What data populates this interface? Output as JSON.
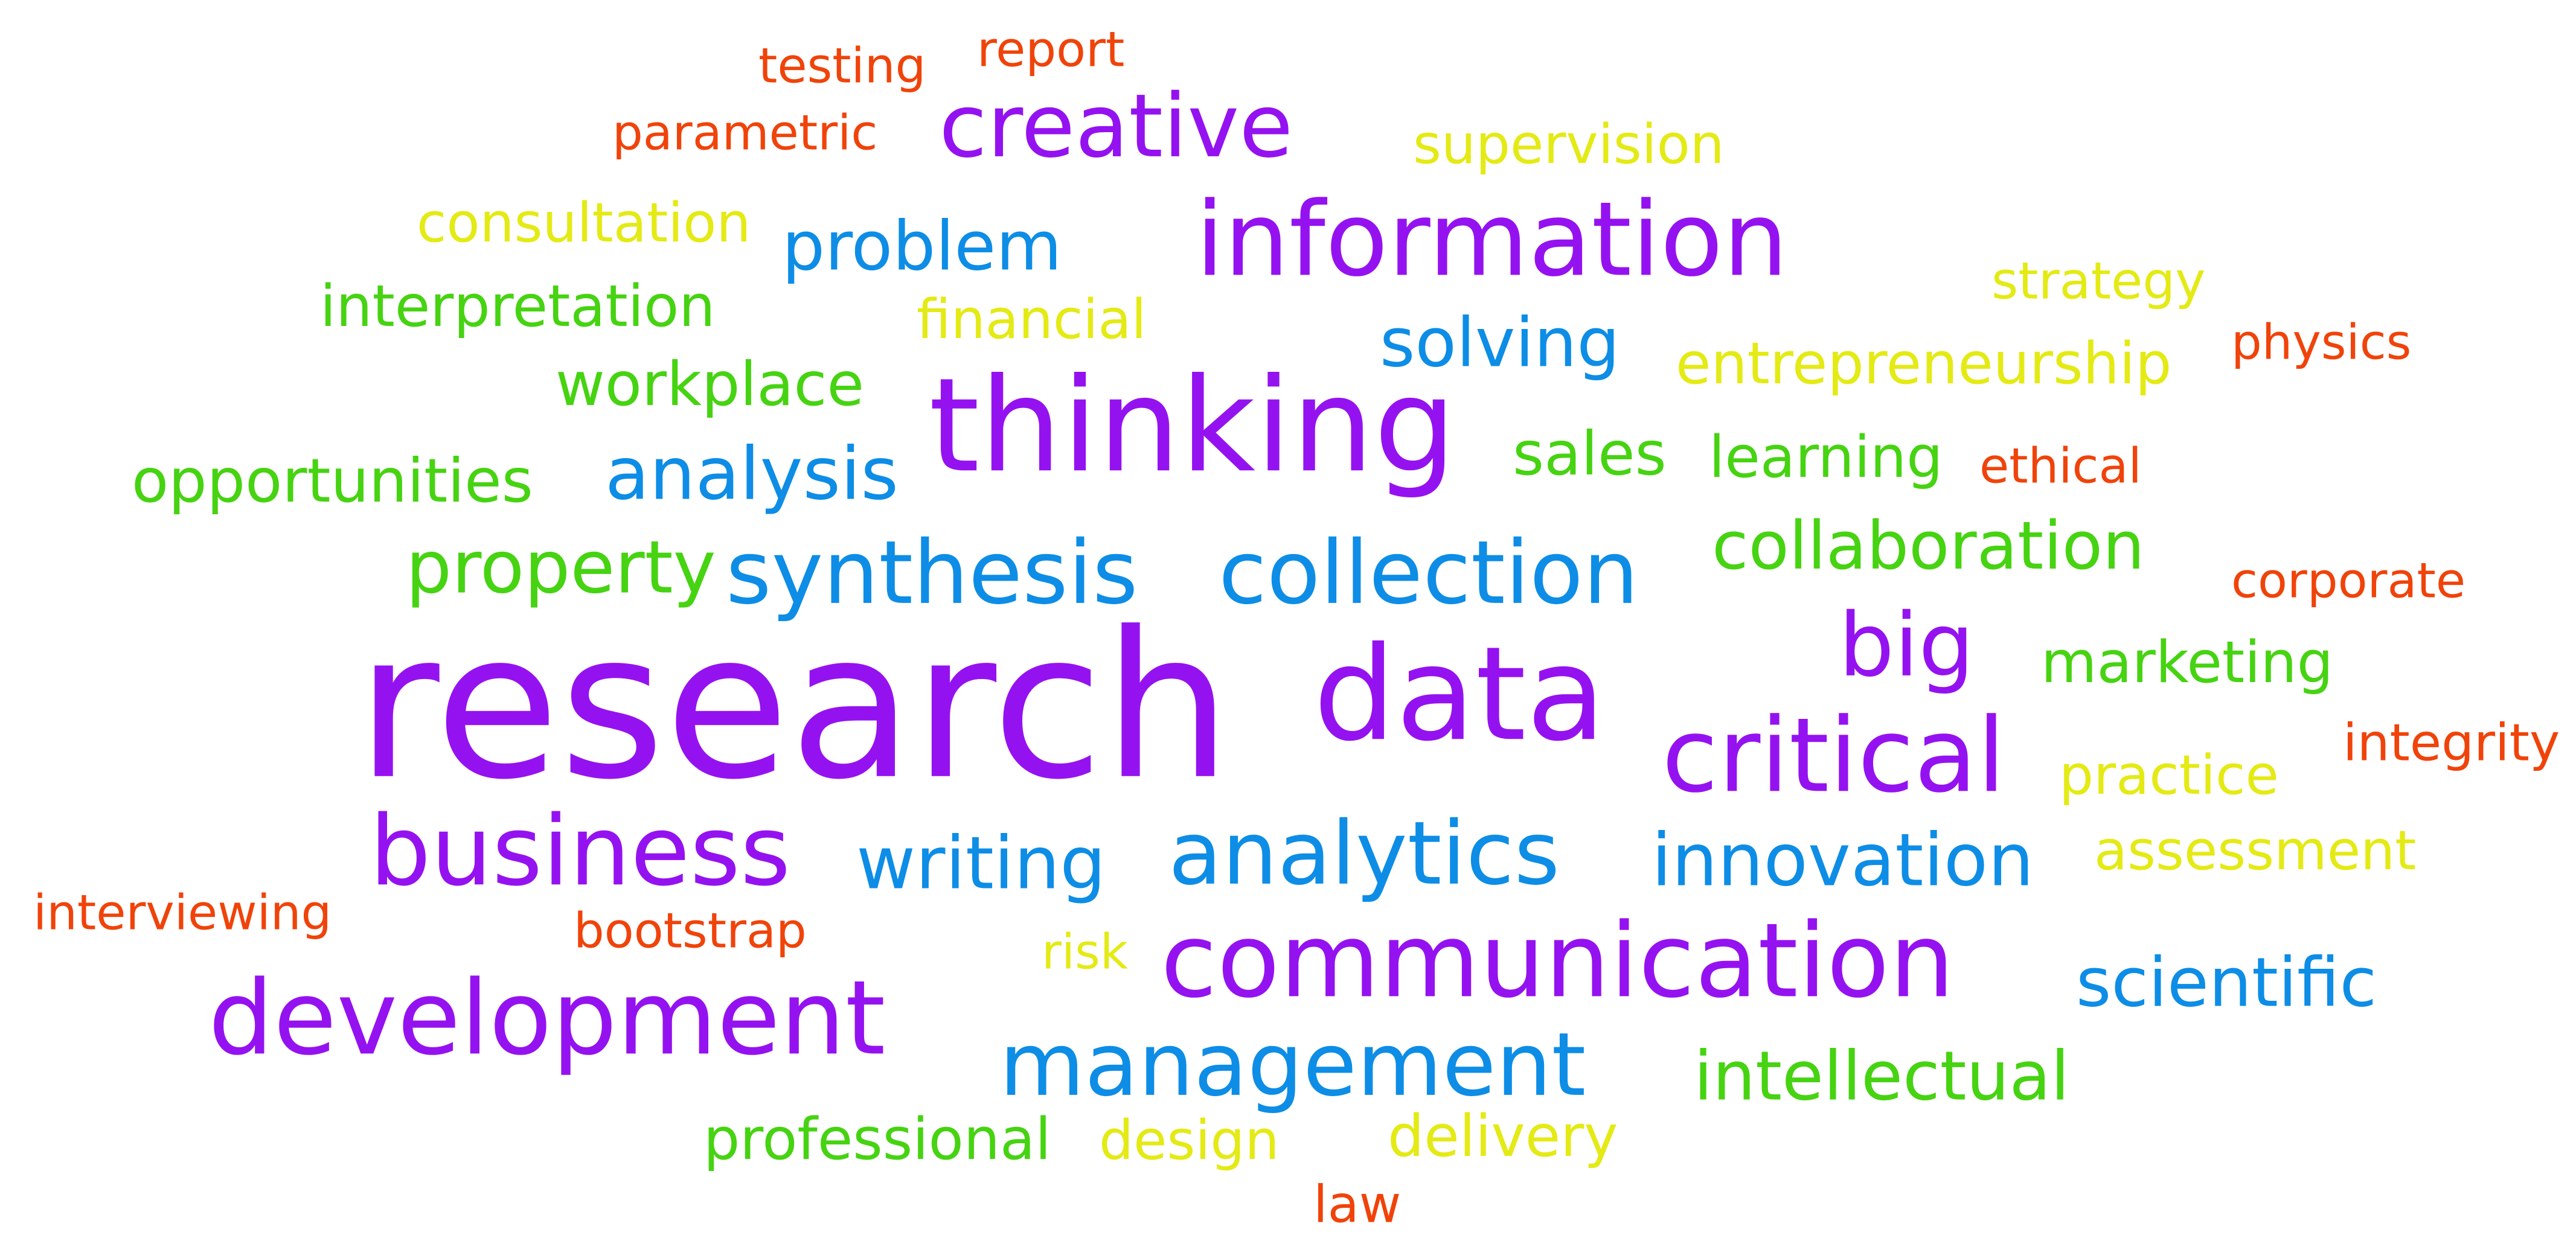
{
  "colors": {
    "purple": "#9512f0",
    "blue": "#0d8de6",
    "green": "#46d311",
    "yellow": "#e4ea14",
    "orange": "#f0430a",
    "background": "#ffffff"
  },
  "words": [
    {
      "text": "testing",
      "color": "orange"
    },
    {
      "text": "report",
      "color": "orange"
    },
    {
      "text": "parametric",
      "color": "orange"
    },
    {
      "text": "creative",
      "color": "purple"
    },
    {
      "text": "supervision",
      "color": "yellow"
    },
    {
      "text": "consultation",
      "color": "yellow"
    },
    {
      "text": "problem",
      "color": "blue"
    },
    {
      "text": "information",
      "color": "purple"
    },
    {
      "text": "interpretation",
      "color": "green"
    },
    {
      "text": "financial",
      "color": "yellow"
    },
    {
      "text": "strategy",
      "color": "yellow"
    },
    {
      "text": "solving",
      "color": "blue"
    },
    {
      "text": "physics",
      "color": "orange"
    },
    {
      "text": "workplace",
      "color": "green"
    },
    {
      "text": "entrepreneurship",
      "color": "yellow"
    },
    {
      "text": "thinking",
      "color": "purple"
    },
    {
      "text": "opportunities",
      "color": "green"
    },
    {
      "text": "analysis",
      "color": "blue"
    },
    {
      "text": "sales",
      "color": "green"
    },
    {
      "text": "learning",
      "color": "green"
    },
    {
      "text": "ethical",
      "color": "orange"
    },
    {
      "text": "property",
      "color": "green"
    },
    {
      "text": "synthesis",
      "color": "blue"
    },
    {
      "text": "collection",
      "color": "blue"
    },
    {
      "text": "collaboration",
      "color": "green"
    },
    {
      "text": "corporate",
      "color": "orange"
    },
    {
      "text": "research",
      "color": "purple"
    },
    {
      "text": "data",
      "color": "purple"
    },
    {
      "text": "big",
      "color": "purple"
    },
    {
      "text": "marketing",
      "color": "green"
    },
    {
      "text": "integrity",
      "color": "orange"
    },
    {
      "text": "critical",
      "color": "purple"
    },
    {
      "text": "practice",
      "color": "yellow"
    },
    {
      "text": "business",
      "color": "purple"
    },
    {
      "text": "writing",
      "color": "blue"
    },
    {
      "text": "analytics",
      "color": "blue"
    },
    {
      "text": "innovation",
      "color": "blue"
    },
    {
      "text": "assessment",
      "color": "yellow"
    },
    {
      "text": "interviewing",
      "color": "orange"
    },
    {
      "text": "bootstrap",
      "color": "orange"
    },
    {
      "text": "risk",
      "color": "yellow"
    },
    {
      "text": "communication",
      "color": "purple"
    },
    {
      "text": "scientific",
      "color": "blue"
    },
    {
      "text": "development",
      "color": "purple"
    },
    {
      "text": "management",
      "color": "blue"
    },
    {
      "text": "intellectual",
      "color": "green"
    },
    {
      "text": "professional",
      "color": "green"
    },
    {
      "text": "design",
      "color": "yellow"
    },
    {
      "text": "delivery",
      "color": "yellow"
    },
    {
      "text": "law",
      "color": "orange"
    }
  ]
}
